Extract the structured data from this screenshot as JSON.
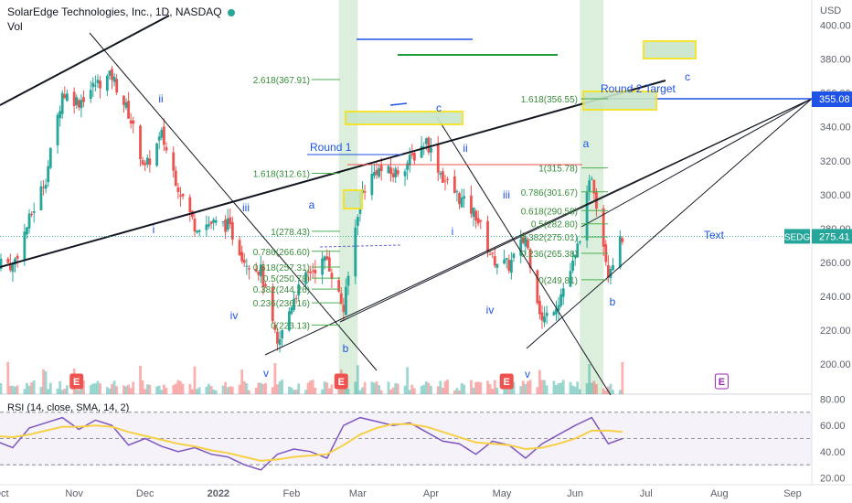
{
  "header": {
    "title": "SolarEdge Technologies, Inc., 1D, NASDAQ",
    "vol_label": "Vol"
  },
  "rsi_label": "RSI (14, close, SMA, 14, 2)",
  "colors": {
    "up": "#26a69a",
    "down": "#ef5350",
    "fib": "#4caf50",
    "blue_line": "#1e53e5",
    "rsi_line": "#7e57c2",
    "rsi_sma": "#f7d046",
    "yellow_box": "#f5e21d"
  },
  "chart_data": [
    {
      "type": "candlestick",
      "title": "SolarEdge Technologies, Inc., 1D, NASDAQ",
      "symbol": "SEDG",
      "last_price": "275.41",
      "y_axis_unit": "USD",
      "ylim": [
        180,
        405
      ],
      "y_ticks": [
        "400.00",
        "380.00",
        "360.00",
        "340.00",
        "320.00",
        "300.00",
        "280.00",
        "260.00",
        "240.00",
        "220.00",
        "200.00"
      ],
      "x_ticks": [
        "Oct",
        "Nov",
        "Dec",
        "2022",
        "Feb",
        "Mar",
        "Apr",
        "May",
        "Jun",
        "Jul",
        "Aug",
        "Sep"
      ],
      "price_path": [
        {
          "date": "2021-09-29",
          "price": 262
        },
        {
          "date": "2021-10-06",
          "price": 258
        },
        {
          "date": "2021-10-13",
          "price": 285
        },
        {
          "date": "2021-10-20",
          "price": 310
        },
        {
          "date": "2021-10-27",
          "price": 360
        },
        {
          "date": "2021-11-03",
          "price": 355
        },
        {
          "date": "2021-11-10",
          "price": 365
        },
        {
          "date": "2021-11-17",
          "price": 370
        },
        {
          "date": "2021-11-24",
          "price": 348
        },
        {
          "date": "2021-12-01",
          "price": 315
        },
        {
          "date": "2021-12-08",
          "price": 335
        },
        {
          "date": "2021-12-15",
          "price": 305
        },
        {
          "date": "2021-12-22",
          "price": 282
        },
        {
          "date": "2021-12-29",
          "price": 283
        },
        {
          "date": "2022-01-05",
          "price": 282
        },
        {
          "date": "2022-01-12",
          "price": 262
        },
        {
          "date": "2022-01-19",
          "price": 255
        },
        {
          "date": "2022-01-26",
          "price": 210
        },
        {
          "date": "2022-02-02",
          "price": 240
        },
        {
          "date": "2022-02-09",
          "price": 255
        },
        {
          "date": "2022-02-16",
          "price": 262
        },
        {
          "date": "2022-02-23",
          "price": 232
        },
        {
          "date": "2022-03-02",
          "price": 300
        },
        {
          "date": "2022-03-09",
          "price": 315
        },
        {
          "date": "2022-03-16",
          "price": 312
        },
        {
          "date": "2022-03-23",
          "price": 320
        },
        {
          "date": "2022-03-30",
          "price": 332
        },
        {
          "date": "2022-04-06",
          "price": 310
        },
        {
          "date": "2022-04-13",
          "price": 298
        },
        {
          "date": "2022-04-20",
          "price": 288
        },
        {
          "date": "2022-04-27",
          "price": 262
        },
        {
          "date": "2022-05-04",
          "price": 258
        },
        {
          "date": "2022-05-11",
          "price": 275
        },
        {
          "date": "2022-05-18",
          "price": 225
        },
        {
          "date": "2022-05-25",
          "price": 238
        },
        {
          "date": "2022-06-01",
          "price": 262
        },
        {
          "date": "2022-06-08",
          "price": 312
        },
        {
          "date": "2022-06-15",
          "price": 255
        },
        {
          "date": "2022-06-21",
          "price": 275
        }
      ],
      "wave_labels": [
        "ii",
        "iii",
        "iv",
        "v",
        "i",
        "a",
        "b",
        "c",
        "ii",
        "iii",
        "iv",
        "v",
        "i",
        "a",
        "b",
        "c"
      ],
      "annotations": [
        "Round 1",
        "Round 2 Target",
        "Text"
      ],
      "price_label": "355.08",
      "fib_levels_1": [
        {
          "label": "0.786(266.60)",
          "price": 266.6
        },
        {
          "label": "0.618(257.31)",
          "price": 257.31
        },
        {
          "label": "0.5(250.78)",
          "price": 250.78
        },
        {
          "label": "0.382(244.26)",
          "price": 244.26
        },
        {
          "label": "0.236(236.16)",
          "price": 236.16
        },
        {
          "label": "0(223.13)",
          "price": 223.13
        },
        {
          "label": "1(278.43)",
          "price": 278.43
        },
        {
          "label": "1.618(312.61)",
          "price": 312.61
        },
        {
          "label": "2.618(367.91)",
          "price": 367.91
        }
      ],
      "fib_levels_2": [
        {
          "label": "1(315.78)",
          "price": 315.78
        },
        {
          "label": "0.786(301.67)",
          "price": 301.67
        },
        {
          "label": "0.618(290.58)",
          "price": 290.58
        },
        {
          "label": "0.5(282.80)",
          "price": 282.8
        },
        {
          "label": "0.382(275.01)",
          "price": 275.01
        },
        {
          "label": "0.236(265.38)",
          "price": 265.38
        },
        {
          "label": "0(249.81)",
          "price": 249.81
        },
        {
          "label": "1.618(356.55)",
          "price": 356.55
        }
      ]
    },
    {
      "type": "line",
      "title": "RSI (14, close, SMA, 14, 2)",
      "ylim": [
        20,
        80
      ],
      "y_ticks": [
        "80.00",
        "60.00",
        "40.00",
        "20.00"
      ],
      "bands": [
        70,
        50,
        30
      ],
      "series": [
        {
          "name": "RSI",
          "values": [
            48,
            43,
            58,
            62,
            66,
            57,
            64,
            60,
            45,
            50,
            44,
            40,
            43,
            38,
            36,
            30,
            26,
            38,
            42,
            40,
            35,
            60,
            66,
            63,
            60,
            62,
            55,
            48,
            46,
            38,
            48,
            45,
            35,
            46,
            53,
            60,
            66,
            46,
            50
          ]
        },
        {
          "name": "SMA",
          "values": [
            52,
            51,
            53,
            56,
            59,
            59,
            60,
            59,
            55,
            52,
            49,
            46,
            44,
            41,
            39,
            36,
            33,
            34,
            36,
            37,
            38,
            45,
            53,
            58,
            61,
            61,
            59,
            55,
            51,
            47,
            46,
            45,
            42,
            43,
            46,
            50,
            56,
            56,
            55
          ]
        }
      ]
    }
  ]
}
